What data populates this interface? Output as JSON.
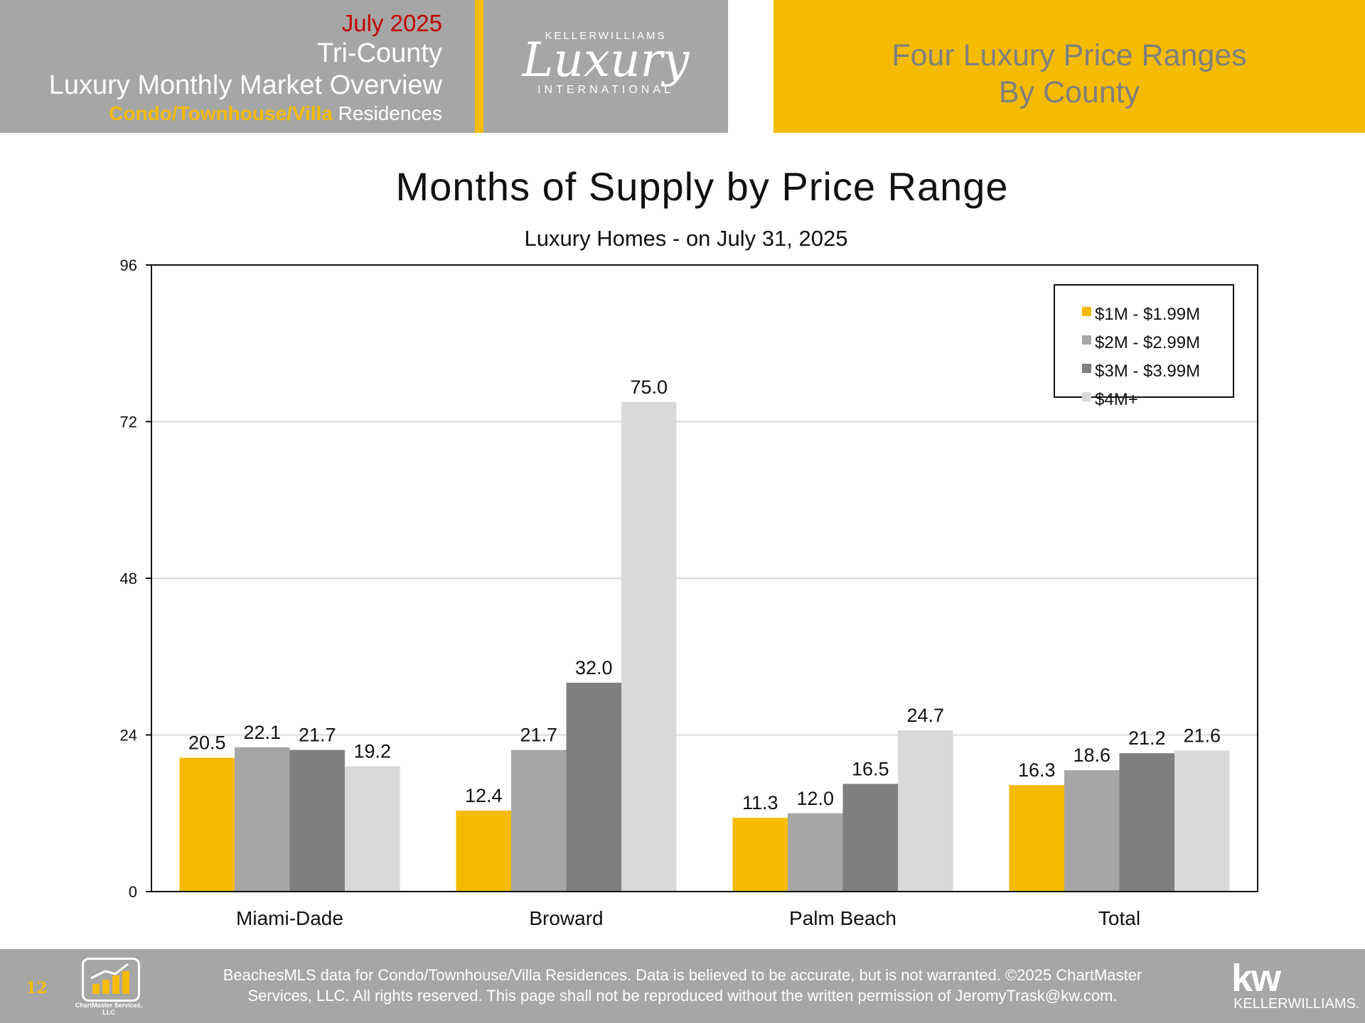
{
  "header": {
    "date": "July 2025",
    "region": "Tri-County",
    "report": "Luxury Monthly Market Overview",
    "property_type_accent": "Condo/Townhouse/Villa",
    "property_type_rest": " Residences",
    "logo_top": "KELLERWILLIAMS",
    "logo_script": "Luxury",
    "logo_bottom": "INTERNATIONAL",
    "right_title_line1": "Four Luxury Price Ranges",
    "right_title_line2": "By County"
  },
  "chart_data": {
    "type": "bar",
    "title": "Months of Supply by Price Range",
    "subtitle": "Luxury Homes - on July 31, 2025",
    "categories": [
      "Miami-Dade",
      "Broward",
      "Palm Beach",
      "Total"
    ],
    "series": [
      {
        "name": "$1M - $1.99M",
        "color": "#f5bb00",
        "values": [
          20.5,
          12.4,
          11.3,
          16.3
        ]
      },
      {
        "name": "$2M - $2.99M",
        "color": "#a6a6a6",
        "values": [
          22.1,
          21.7,
          12.0,
          18.6
        ]
      },
      {
        "name": "$3M - $3.99M",
        "color": "#7f7f7f",
        "values": [
          21.7,
          32.0,
          16.5,
          21.2
        ]
      },
      {
        "name": "$4M+",
        "color": "#d9d9d9",
        "values": [
          19.2,
          75.0,
          24.7,
          21.6
        ]
      }
    ],
    "yticks": [
      0,
      24,
      48,
      72,
      96
    ],
    "ylim": [
      0,
      96
    ],
    "grid": true,
    "legend": "top-right"
  },
  "footer": {
    "page_number": "12",
    "chartmaster_name": "ChartMaster Services, LLC",
    "disclaimer_line1": "BeachesMLS data for Condo/Townhouse/Villa Residences.  Data is believed to be accurate, but is not warranted.   ©2025  ChartMaster",
    "disclaimer_line2": "Services, LLC.  All rights reserved. This page shall not be reproduced without the written permission of JeromyTrask@kw.com.",
    "kw_mark": "kw",
    "kw_name": "KELLERWILLIAMS."
  }
}
